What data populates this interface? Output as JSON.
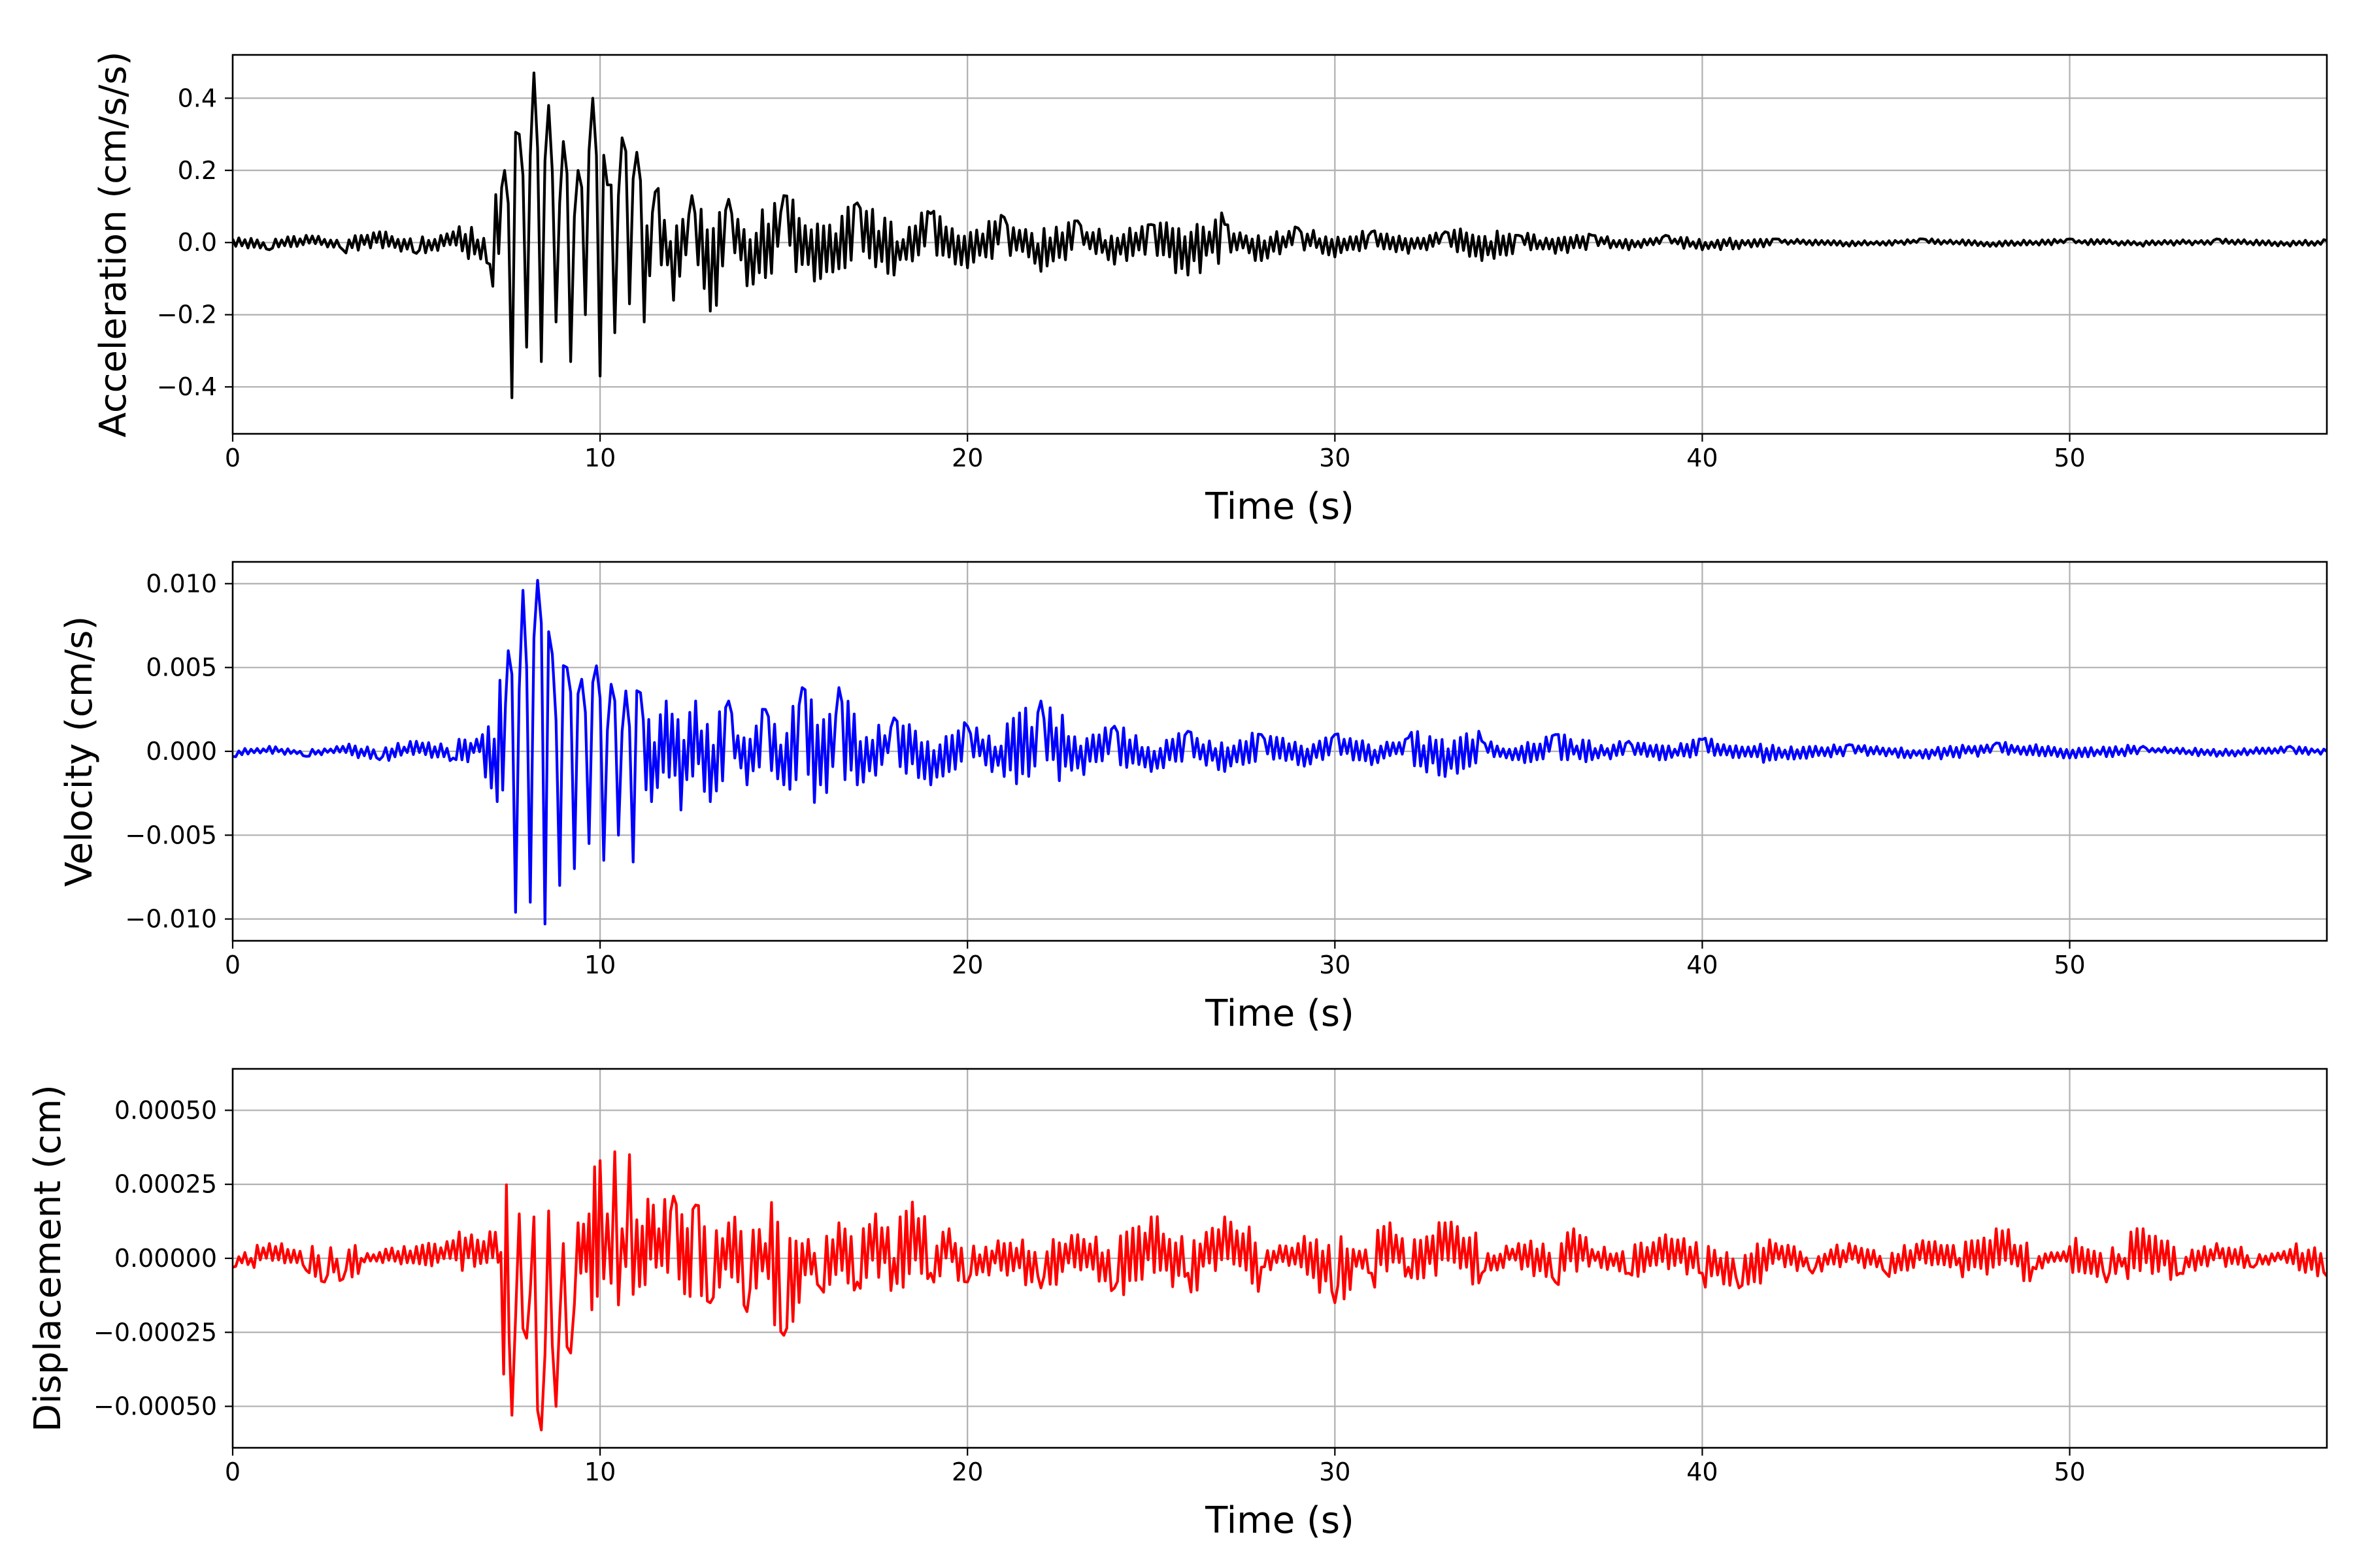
{
  "chart_data": [
    {
      "type": "line",
      "xlabel": "Time (s)",
      "ylabel": "Acceleration (cm/s/s)",
      "xlim": [
        0,
        57
      ],
      "ylim": [
        -0.53,
        0.52
      ],
      "xticks": [
        0,
        10,
        20,
        30,
        40,
        50
      ],
      "xtick_labels": [
        "0",
        "10",
        "20",
        "30",
        "40",
        "50"
      ],
      "yticks": [
        -0.4,
        -0.2,
        0.0,
        0.2,
        0.4
      ],
      "ytick_labels": [
        "−0.4",
        "−0.2",
        "0.0",
        "0.2",
        "0.4"
      ],
      "grid": true,
      "color": "#000000",
      "x": [
        0,
        1,
        2,
        3,
        4,
        5,
        6,
        7,
        7.4,
        7.6,
        7.8,
        8,
        8.2,
        8.4,
        8.6,
        8.8,
        9,
        9.2,
        9.4,
        9.6,
        9.8,
        10,
        10.2,
        10.4,
        10.6,
        10.8,
        11,
        11.2,
        11.5,
        12,
        12.5,
        13,
        13.5,
        14,
        15,
        16,
        17,
        18,
        19,
        20,
        21,
        22,
        23,
        24,
        25,
        26,
        27,
        28,
        29,
        30,
        31,
        32,
        33,
        34,
        35,
        36,
        37,
        38,
        39,
        40,
        42,
        44,
        46,
        48,
        50,
        52,
        54,
        56,
        57
      ],
      "y": [
        0.01,
        -0.02,
        0.02,
        -0.02,
        0.03,
        -0.03,
        0.03,
        -0.06,
        0.2,
        -0.43,
        0.3,
        -0.29,
        0.47,
        -0.33,
        0.38,
        -0.22,
        0.28,
        -0.33,
        0.2,
        -0.2,
        0.4,
        -0.37,
        0.16,
        -0.25,
        0.29,
        -0.17,
        0.25,
        -0.22,
        0.14,
        -0.16,
        0.13,
        -0.19,
        0.12,
        -0.12,
        0.13,
        -0.1,
        0.11,
        -0.09,
        0.08,
        -0.07,
        0.07,
        -0.08,
        0.06,
        -0.06,
        0.05,
        -0.09,
        0.05,
        -0.05,
        0.04,
        -0.04,
        0.03,
        -0.03,
        0.03,
        -0.05,
        0.02,
        -0.03,
        0.02,
        -0.02,
        0.02,
        -0.02,
        0.01,
        -0.01,
        0.01,
        -0.01,
        0.01,
        -0.01,
        0.01,
        -0.01,
        0.005
      ]
    },
    {
      "type": "line",
      "xlabel": "Time (s)",
      "ylabel": "Velocity (cm/s)",
      "xlim": [
        0,
        57
      ],
      "ylim": [
        -0.0113,
        0.0113
      ],
      "xticks": [
        0,
        10,
        20,
        30,
        40,
        50
      ],
      "xtick_labels": [
        "0",
        "10",
        "20",
        "30",
        "40",
        "50"
      ],
      "yticks": [
        -0.01,
        -0.005,
        0.0,
        0.005,
        0.01
      ],
      "ytick_labels": [
        "−0.010",
        "−0.005",
        "0.000",
        "0.005",
        "0.010"
      ],
      "grid": true,
      "color": "#0000ff",
      "x": [
        0,
        1,
        2,
        3,
        4,
        5,
        6,
        6.8,
        7.2,
        7.5,
        7.7,
        7.9,
        8.1,
        8.3,
        8.5,
        8.7,
        8.9,
        9.1,
        9.3,
        9.5,
        9.7,
        9.9,
        10.1,
        10.3,
        10.5,
        10.7,
        10.9,
        11.1,
        11.4,
        11.8,
        12.2,
        12.6,
        13,
        13.5,
        14,
        14.5,
        15,
        15.5,
        16,
        16.5,
        17,
        18,
        19,
        20,
        21,
        22,
        23,
        24,
        25,
        26,
        27,
        28,
        29,
        30,
        31,
        32,
        33,
        34,
        35,
        36,
        37,
        38,
        39,
        40,
        42,
        44,
        46,
        48,
        50,
        52,
        54,
        56,
        57
      ],
      "y": [
        -0.0003,
        0.0003,
        -0.0003,
        0.0003,
        -0.0005,
        0.0006,
        -0.0004,
        0.001,
        -0.003,
        0.006,
        -0.0096,
        0.0096,
        -0.009,
        0.0102,
        -0.0103,
        0.0058,
        -0.008,
        0.005,
        -0.007,
        0.0043,
        -0.0055,
        0.0051,
        -0.0065,
        0.004,
        -0.005,
        0.0036,
        -0.0066,
        0.0035,
        -0.003,
        0.003,
        -0.0035,
        0.003,
        -0.003,
        0.003,
        -0.002,
        0.0025,
        -0.002,
        0.0038,
        -0.002,
        0.0038,
        -0.002,
        0.002,
        -0.002,
        0.0015,
        -0.0015,
        0.003,
        -0.001,
        0.0015,
        -0.0012,
        0.0012,
        -0.0012,
        0.001,
        -0.0008,
        0.001,
        -0.0008,
        0.0008,
        -0.0015,
        0.0006,
        -0.0005,
        0.001,
        -0.0005,
        0.0006,
        -0.0005,
        0.0007,
        -0.0005,
        0.0004,
        -0.0004,
        0.0005,
        -0.0004,
        0.0003,
        -0.0003,
        0.0003,
        0.0
      ]
    },
    {
      "type": "line",
      "xlabel": "Time (s)",
      "ylabel": "Displacement (cm)",
      "xlim": [
        0,
        57
      ],
      "ylim": [
        -0.00064,
        0.00064
      ],
      "xticks": [
        0,
        10,
        20,
        30,
        40,
        50
      ],
      "xtick_labels": [
        "0",
        "10",
        "20",
        "30",
        "40",
        "50"
      ],
      "yticks": [
        -0.0005,
        -0.00025,
        0.0,
        0.00025,
        0.0005
      ],
      "ytick_labels": [
        "−0.00050",
        "−0.00025",
        "0.00000",
        "0.00025",
        "0.00050"
      ],
      "grid": true,
      "color": "#ff0000",
      "x": [
        0,
        0.5,
        1,
        1.5,
        2,
        2.5,
        3,
        3.5,
        4,
        5,
        6,
        7,
        7.3,
        7.6,
        7.8,
        8,
        8.2,
        8.4,
        8.6,
        8.8,
        9,
        9.2,
        9.4,
        9.7,
        10,
        10.2,
        10.4,
        10.6,
        10.8,
        11,
        11.3,
        11.6,
        12,
        12.3,
        12.6,
        13,
        13.5,
        14,
        14.5,
        15,
        15.5,
        16,
        16.5,
        17,
        17.5,
        18,
        18.5,
        19,
        19.5,
        20,
        21,
        22,
        23,
        24,
        25,
        26,
        27,
        28,
        29,
        30,
        30.5,
        31,
        31.5,
        32,
        33,
        34,
        35,
        36,
        36.5,
        37,
        38,
        39,
        40,
        41,
        42,
        43,
        44,
        45,
        46,
        47,
        48,
        49,
        50,
        51,
        51.5,
        52,
        53,
        54,
        55,
        56,
        57
      ],
      "y": [
        -3e-05,
        0.0,
        5e-05,
        3e-05,
        -4e-05,
        -8e-05,
        -7e-05,
        0.0,
        2e-05,
        4e-05,
        6e-05,
        9e-05,
        2e-05,
        -0.00053,
        0.00015,
        -0.00027,
        0.00014,
        -0.00058,
        0.00016,
        -0.0005,
        5e-05,
        -0.00032,
        0.00012,
        0.00015,
        0.00033,
        0.00015,
        0.00036,
        0.0001,
        0.00035,
        0.00013,
        0.0002,
        0.0001,
        0.00021,
        -0.00012,
        0.00018,
        -0.00015,
        0.00012,
        -0.00018,
        5e-05,
        -0.00026,
        5e-05,
        -0.0001,
        0.00012,
        -8e-05,
        0.00015,
        0.0,
        0.00019,
        -5e-05,
        0.0001,
        -8e-05,
        5e-05,
        -0.0001,
        8e-05,
        -0.0001,
        0.00014,
        -5e-05,
        0.00014,
        -3e-05,
        5e-05,
        -0.00015,
        3e-05,
        -5e-05,
        0.00012,
        -3e-05,
        0.00012,
        -5e-05,
        5e-05,
        -8e-05,
        0.0001,
        3e-05,
        -5e-05,
        8e-05,
        -5e-05,
        -0.0001,
        5e-05,
        -5e-05,
        5e-05,
        -5e-05,
        6e-05,
        0.0,
        0.0001,
        -3e-05,
        4e-05,
        -8e-05,
        0.0,
        0.0001,
        -5e-05,
        5e-05,
        -3e-05,
        3e-05,
        -6e-05
      ]
    }
  ]
}
